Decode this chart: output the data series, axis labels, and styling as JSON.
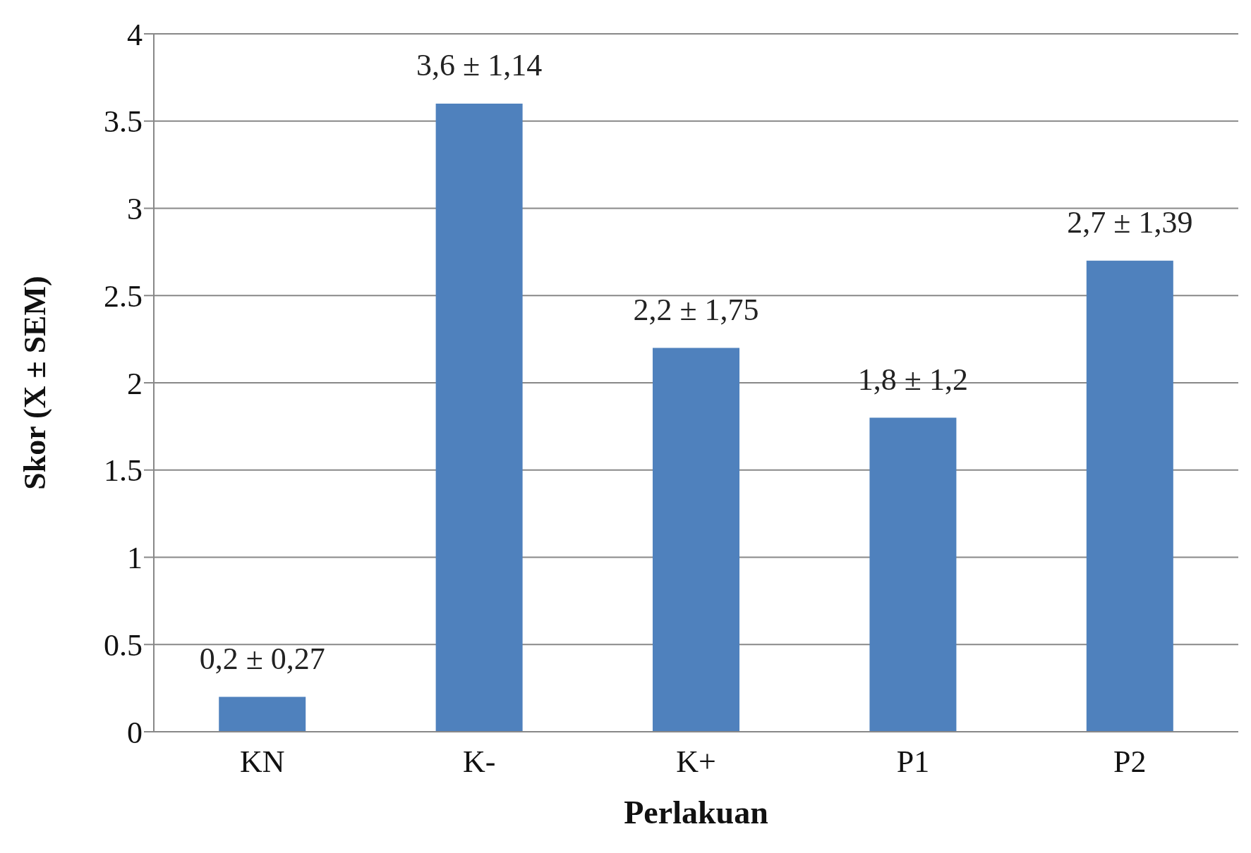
{
  "chart_data": {
    "type": "bar",
    "xlabel": "Perlakuan",
    "ylabel": "Skor (X ± SEM)",
    "categories": [
      "KN",
      "K-",
      "K+",
      "P1",
      "P2"
    ],
    "values": [
      0.2,
      3.6,
      2.2,
      1.8,
      2.7
    ],
    "value_labels": [
      "0,2 ± 0,27",
      "3,6 ± 1,14",
      "2,2 ± 1,75",
      "1,8 ± 1,2",
      "2,7 ± 1,39"
    ],
    "color": "#4f81bd",
    "ylim": [
      0,
      4
    ],
    "yticks": [
      0,
      0.5,
      1,
      1.5,
      2,
      2.5,
      3,
      3.5,
      4
    ],
    "grid": "y"
  }
}
